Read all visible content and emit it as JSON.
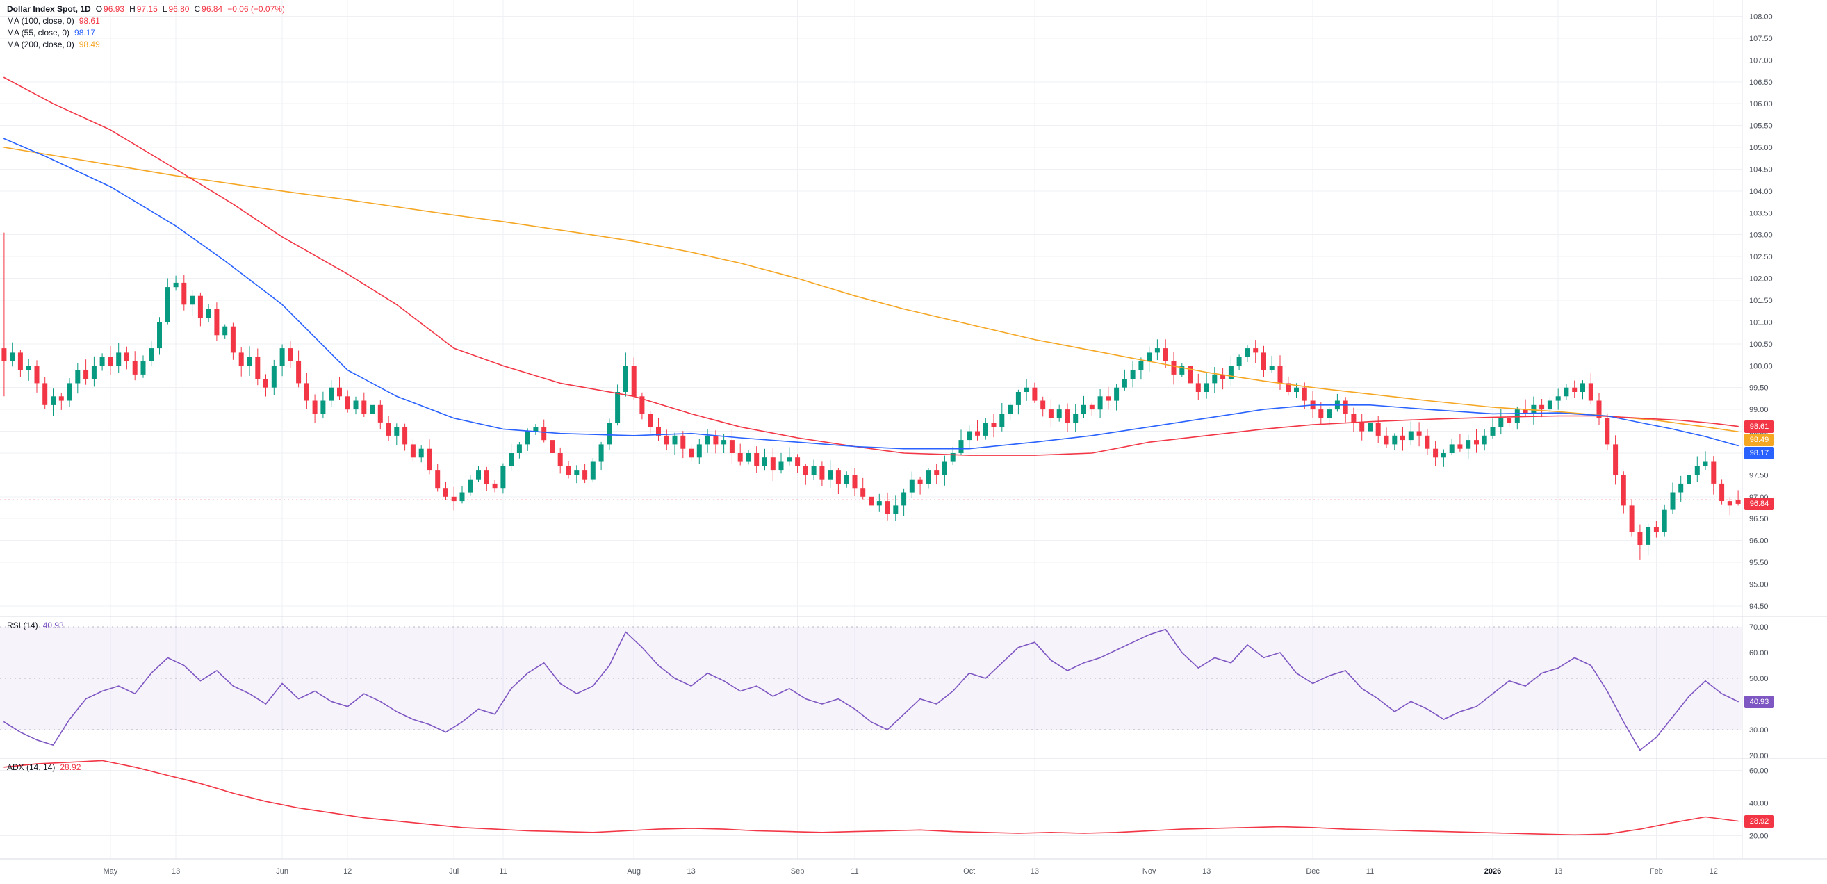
{
  "legend": {
    "title": "Dollar Index Spot, 1D",
    "ohlc": [
      {
        "k": "O",
        "v": "96.93"
      },
      {
        "k": "H",
        "v": "97.15"
      },
      {
        "k": "L",
        "v": "96.80"
      },
      {
        "k": "C",
        "v": "96.84"
      }
    ],
    "change": "−0.06 (−0.07%)",
    "value_color": "#f23645"
  },
  "indicators": [
    {
      "label": "MA (100, close, 0)",
      "value": "98.61",
      "color": "#f23645"
    },
    {
      "label": "MA (55, close, 0)",
      "value": "98.17",
      "color": "#2962ff"
    },
    {
      "label": "MA (200, close, 0)",
      "value": "98.49",
      "color": "#f5a623"
    }
  ],
  "rsi_legend": {
    "label": "RSI (14)",
    "value": "40.93",
    "color": "#7e57c2"
  },
  "adx_legend": {
    "label": "ADX (14, 14)",
    "value": "28.92",
    "color": "#f23645"
  },
  "axes": {
    "price_labels": [
      "108.00",
      "107.50",
      "107.00",
      "106.50",
      "106.00",
      "105.50",
      "105.00",
      "104.50",
      "104.00",
      "103.50",
      "103.00",
      "102.50",
      "102.00",
      "101.50",
      "101.00",
      "100.50",
      "100.00",
      "99.50",
      "99.00",
      "98.50",
      "98.00",
      "97.50",
      "97.00",
      "96.50",
      "96.00",
      "95.50",
      "95.00",
      "94.50"
    ],
    "rsi_labels": [
      "70.00",
      "60.00",
      "50.00",
      "40.00",
      "30.00",
      "20.00"
    ],
    "adx_labels": [
      "60.00",
      "40.00",
      "20.00"
    ],
    "time_ticks": [
      {
        "label": "May",
        "bar": 13
      },
      {
        "label": "13",
        "bar": 21
      },
      {
        "label": "Jun",
        "bar": 34
      },
      {
        "label": "12",
        "bar": 42
      },
      {
        "label": "Jul",
        "bar": 55
      },
      {
        "label": "11",
        "bar": 61
      },
      {
        "label": "Aug",
        "bar": 77
      },
      {
        "label": "13",
        "bar": 84
      },
      {
        "label": "Sep",
        "bar": 97
      },
      {
        "label": "11",
        "bar": 104
      },
      {
        "label": "Oct",
        "bar": 118
      },
      {
        "label": "13",
        "bar": 126
      },
      {
        "label": "Nov",
        "bar": 140
      },
      {
        "label": "13",
        "bar": 147
      },
      {
        "label": "Dec",
        "bar": 160
      },
      {
        "label": "11",
        "bar": 167
      },
      {
        "label": "2026",
        "bar": 182,
        "year": true
      },
      {
        "label": "13",
        "bar": 190
      },
      {
        "label": "Feb",
        "bar": 202
      },
      {
        "label": "12",
        "bar": 209
      }
    ]
  },
  "badges": {
    "price": [
      {
        "text": "98.61",
        "value": 98.61,
        "color": "#f23645"
      },
      {
        "text": "98.49",
        "value": 98.49,
        "color": "#f5a623"
      },
      {
        "text": "98.17",
        "value": 98.17,
        "color": "#2962ff"
      },
      {
        "text": "96.84",
        "value": 96.84,
        "color": "#f23645"
      }
    ],
    "rsi": {
      "text": "40.93",
      "value": 40.93,
      "color": "#7e57c2"
    },
    "adx": {
      "text": "28.92",
      "value": 28.92,
      "color": "#f23645"
    }
  },
  "chart_data": {
    "type": "candlestick",
    "title": "Dollar Index Spot, 1D",
    "panes": [
      "price with MA(100), MA(55), MA(200)",
      "RSI(14)",
      "ADX(14,14)"
    ],
    "price_range": [
      94.26,
      108.374
    ],
    "rsi_range": [
      18.9,
      74.05
    ],
    "adx_range": [
      5.75,
      67.45
    ],
    "rsi_band": [
      30,
      70
    ],
    "rsi_mid": 50,
    "last_price_line": 96.93,
    "colors": {
      "up": "#089981",
      "down": "#f23645",
      "ma100": "#f23645",
      "ma55": "#2962ff",
      "ma200": "#f5a623",
      "rsi": "#7e57c2",
      "adx": "#f23645",
      "grid": "#eef0f4"
    },
    "close": [
      100.1,
      100.3,
      99.9,
      100.0,
      99.6,
      99.1,
      99.3,
      99.2,
      99.6,
      99.9,
      99.7,
      100.0,
      100.2,
      100.0,
      100.3,
      100.1,
      99.8,
      100.1,
      100.4,
      101.0,
      101.8,
      101.9,
      101.4,
      101.6,
      101.1,
      101.3,
      100.7,
      100.9,
      100.3,
      100.0,
      100.2,
      99.7,
      99.5,
      100.0,
      100.4,
      100.1,
      99.6,
      99.2,
      98.9,
      99.2,
      99.5,
      99.3,
      99.0,
      99.2,
      98.9,
      99.1,
      98.7,
      98.4,
      98.6,
      98.2,
      97.9,
      98.1,
      97.6,
      97.2,
      97.0,
      96.9,
      97.1,
      97.4,
      97.6,
      97.3,
      97.2,
      97.7,
      98.0,
      98.2,
      98.5,
      98.6,
      98.3,
      98.0,
      97.7,
      97.5,
      97.6,
      97.4,
      97.8,
      98.2,
      98.7,
      99.4,
      100.0,
      99.3,
      98.9,
      98.6,
      98.4,
      98.2,
      98.4,
      98.1,
      97.9,
      98.2,
      98.4,
      98.2,
      98.3,
      98.0,
      97.8,
      98.0,
      97.7,
      97.9,
      97.6,
      97.8,
      97.9,
      97.7,
      97.5,
      97.7,
      97.4,
      97.6,
      97.3,
      97.5,
      97.2,
      97.0,
      96.8,
      96.9,
      96.6,
      96.8,
      97.1,
      97.4,
      97.3,
      97.6,
      97.5,
      97.8,
      98.0,
      98.3,
      98.5,
      98.4,
      98.7,
      98.6,
      98.9,
      99.1,
      99.4,
      99.5,
      99.2,
      99.0,
      98.8,
      99.0,
      98.7,
      98.9,
      99.1,
      99.0,
      99.3,
      99.2,
      99.5,
      99.7,
      99.9,
      100.1,
      100.3,
      100.4,
      100.1,
      99.8,
      100.0,
      99.6,
      99.4,
      99.6,
      99.8,
      99.7,
      100.0,
      100.2,
      100.4,
      100.3,
      99.9,
      100.0,
      99.6,
      99.4,
      99.5,
      99.2,
      99.0,
      98.8,
      99.0,
      99.2,
      98.9,
      98.7,
      98.5,
      98.7,
      98.4,
      98.2,
      98.4,
      98.3,
      98.5,
      98.4,
      98.1,
      97.9,
      98.0,
      98.2,
      98.1,
      98.3,
      98.2,
      98.4,
      98.6,
      98.8,
      98.7,
      99.0,
      98.9,
      99.1,
      99.0,
      99.2,
      99.3,
      99.5,
      99.4,
      99.6,
      99.2,
      98.8,
      98.2,
      97.5,
      96.8,
      96.2,
      95.9,
      96.3,
      96.2,
      96.7,
      97.1,
      97.3,
      97.5,
      97.7,
      97.8,
      97.3,
      96.9,
      96.8,
      96.84
    ],
    "overrides": {
      "0": {
        "open": 100.4,
        "high": 103.05,
        "low": 99.3
      },
      "76": {
        "high": 100.3
      },
      "200": {
        "low": 95.55
      },
      "212": {
        "open": 96.93,
        "high": 97.15,
        "low": 96.8
      }
    },
    "ma100": [
      [
        0,
        106.6
      ],
      [
        6,
        106.0
      ],
      [
        13,
        105.4
      ],
      [
        21,
        104.5
      ],
      [
        28,
        103.7
      ],
      [
        34,
        102.95
      ],
      [
        42,
        102.1
      ],
      [
        48,
        101.4
      ],
      [
        55,
        100.4
      ],
      [
        61,
        100.0
      ],
      [
        68,
        99.6
      ],
      [
        77,
        99.3
      ],
      [
        84,
        98.9
      ],
      [
        90,
        98.6
      ],
      [
        97,
        98.35
      ],
      [
        104,
        98.15
      ],
      [
        110,
        98.0
      ],
      [
        118,
        97.95
      ],
      [
        126,
        97.95
      ],
      [
        133,
        98.0
      ],
      [
        140,
        98.25
      ],
      [
        147,
        98.4
      ],
      [
        154,
        98.55
      ],
      [
        160,
        98.65
      ],
      [
        167,
        98.72
      ],
      [
        175,
        98.78
      ],
      [
        182,
        98.82
      ],
      [
        190,
        98.85
      ],
      [
        195,
        98.85
      ],
      [
        200,
        98.8
      ],
      [
        205,
        98.75
      ],
      [
        209,
        98.68
      ],
      [
        212,
        98.61
      ]
    ],
    "ma55": [
      [
        0,
        105.2
      ],
      [
        5,
        104.8
      ],
      [
        13,
        104.1
      ],
      [
        21,
        103.2
      ],
      [
        27,
        102.4
      ],
      [
        34,
        101.4
      ],
      [
        42,
        99.9
      ],
      [
        48,
        99.3
      ],
      [
        55,
        98.8
      ],
      [
        61,
        98.55
      ],
      [
        68,
        98.45
      ],
      [
        77,
        98.4
      ],
      [
        84,
        98.45
      ],
      [
        90,
        98.35
      ],
      [
        97,
        98.25
      ],
      [
        104,
        98.15
      ],
      [
        110,
        98.1
      ],
      [
        118,
        98.1
      ],
      [
        126,
        98.25
      ],
      [
        133,
        98.4
      ],
      [
        140,
        98.6
      ],
      [
        147,
        98.8
      ],
      [
        154,
        99.0
      ],
      [
        160,
        99.1
      ],
      [
        167,
        99.1
      ],
      [
        174,
        99.0
      ],
      [
        182,
        98.9
      ],
      [
        190,
        98.92
      ],
      [
        196,
        98.85
      ],
      [
        200,
        98.7
      ],
      [
        204,
        98.55
      ],
      [
        208,
        98.38
      ],
      [
        212,
        98.17
      ]
    ],
    "ma200": [
      [
        0,
        105.0
      ],
      [
        13,
        104.6
      ],
      [
        21,
        104.35
      ],
      [
        34,
        104.0
      ],
      [
        42,
        103.8
      ],
      [
        55,
        103.45
      ],
      [
        61,
        103.3
      ],
      [
        70,
        103.05
      ],
      [
        77,
        102.85
      ],
      [
        84,
        102.6
      ],
      [
        90,
        102.35
      ],
      [
        97,
        102.0
      ],
      [
        104,
        101.6
      ],
      [
        110,
        101.3
      ],
      [
        118,
        100.95
      ],
      [
        126,
        100.6
      ],
      [
        133,
        100.35
      ],
      [
        140,
        100.1
      ],
      [
        147,
        99.85
      ],
      [
        154,
        99.65
      ],
      [
        160,
        99.5
      ],
      [
        167,
        99.35
      ],
      [
        174,
        99.2
      ],
      [
        182,
        99.05
      ],
      [
        190,
        98.95
      ],
      [
        196,
        98.85
      ],
      [
        202,
        98.75
      ],
      [
        208,
        98.6
      ],
      [
        212,
        98.49
      ]
    ],
    "rsi_step": 2,
    "rsi": [
      33,
      29,
      26,
      24,
      34,
      42,
      45,
      47,
      44,
      52,
      58,
      55,
      49,
      53,
      47,
      44,
      40,
      48,
      42,
      45,
      41,
      39,
      44,
      41,
      37,
      34,
      32,
      29,
      33,
      38,
      36,
      46,
      52,
      56,
      48,
      44,
      47,
      55,
      68,
      62,
      55,
      50,
      47,
      52,
      49,
      45,
      47,
      43,
      46,
      42,
      40,
      42,
      38,
      33,
      30,
      36,
      42,
      40,
      45,
      52,
      50,
      56,
      62,
      64,
      57,
      53,
      56,
      58,
      61,
      64,
      67,
      69,
      60,
      54,
      58,
      56,
      63,
      58,
      60,
      52,
      48,
      51,
      53,
      46,
      42,
      37,
      41,
      38,
      34,
      37,
      39,
      44,
      49,
      47,
      52,
      54,
      58,
      55,
      45,
      33,
      22,
      27,
      35,
      43,
      49,
      44,
      40.93
    ],
    "adx_step": 4,
    "adx": [
      62,
      64,
      65,
      66,
      62,
      57,
      52,
      46,
      41,
      37,
      34,
      31,
      29,
      27,
      25,
      24,
      23,
      22.5,
      22,
      23,
      24,
      24.5,
      24,
      23,
      22.5,
      22,
      22.5,
      23,
      23.5,
      22.5,
      22,
      21.5,
      22,
      21.5,
      22,
      23,
      24,
      24.5,
      25,
      25.5,
      25,
      24,
      23.5,
      23,
      22.5,
      22,
      21.5,
      21,
      20.5,
      21,
      24,
      28,
      31.5,
      28.92
    ]
  }
}
